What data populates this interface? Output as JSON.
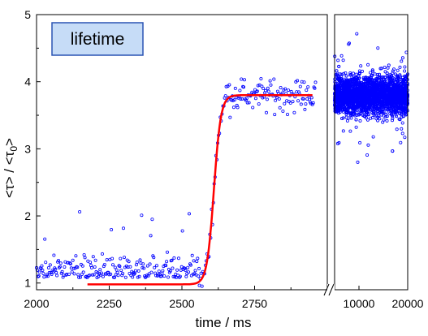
{
  "chart_data": {
    "type": "scatter",
    "annotation": "lifetime",
    "xlabel": "time / ms",
    "ylabel_parts": [
      "<τ> / <τ",
      "0",
      ">"
    ],
    "ylim": [
      0.9,
      5
    ],
    "yticks": [
      "1",
      "2",
      "3",
      "4",
      "5"
    ],
    "axis_break": true,
    "segments": [
      {
        "xlim": [
          2000,
          3000
        ],
        "xticks": [
          "2000",
          "2250",
          "2500",
          "2750"
        ]
      },
      {
        "xlim": [
          5000,
          20000
        ],
        "xticks": [
          "10000",
          "20000"
        ]
      }
    ],
    "series": [
      {
        "style": "scatter",
        "color": "#0000ff",
        "description_ranges": [
          {
            "x": [
              2000,
              2550
            ],
            "y_mean": 1.2,
            "y_spread": [
              0.93,
              2.2
            ]
          },
          {
            "x": [
              2550,
              2640
            ],
            "y_range": [
              1.0,
              3.8
            ]
          },
          {
            "x": [
              2640,
              2950
            ],
            "y_mean": 3.8,
            "y_spread": [
              3.3,
              4.35
            ]
          },
          {
            "x": [
              5000,
              20000
            ],
            "y_mean": 3.8,
            "y_spread": [
              2.8,
              4.75
            ]
          }
        ]
      },
      {
        "style": "line",
        "color": "#ff0000",
        "fit": "sigmoid",
        "x_range": [
          2175,
          2950
        ],
        "low": 0.98,
        "high": 3.8,
        "midpoint": 2610,
        "width": 12
      }
    ]
  }
}
